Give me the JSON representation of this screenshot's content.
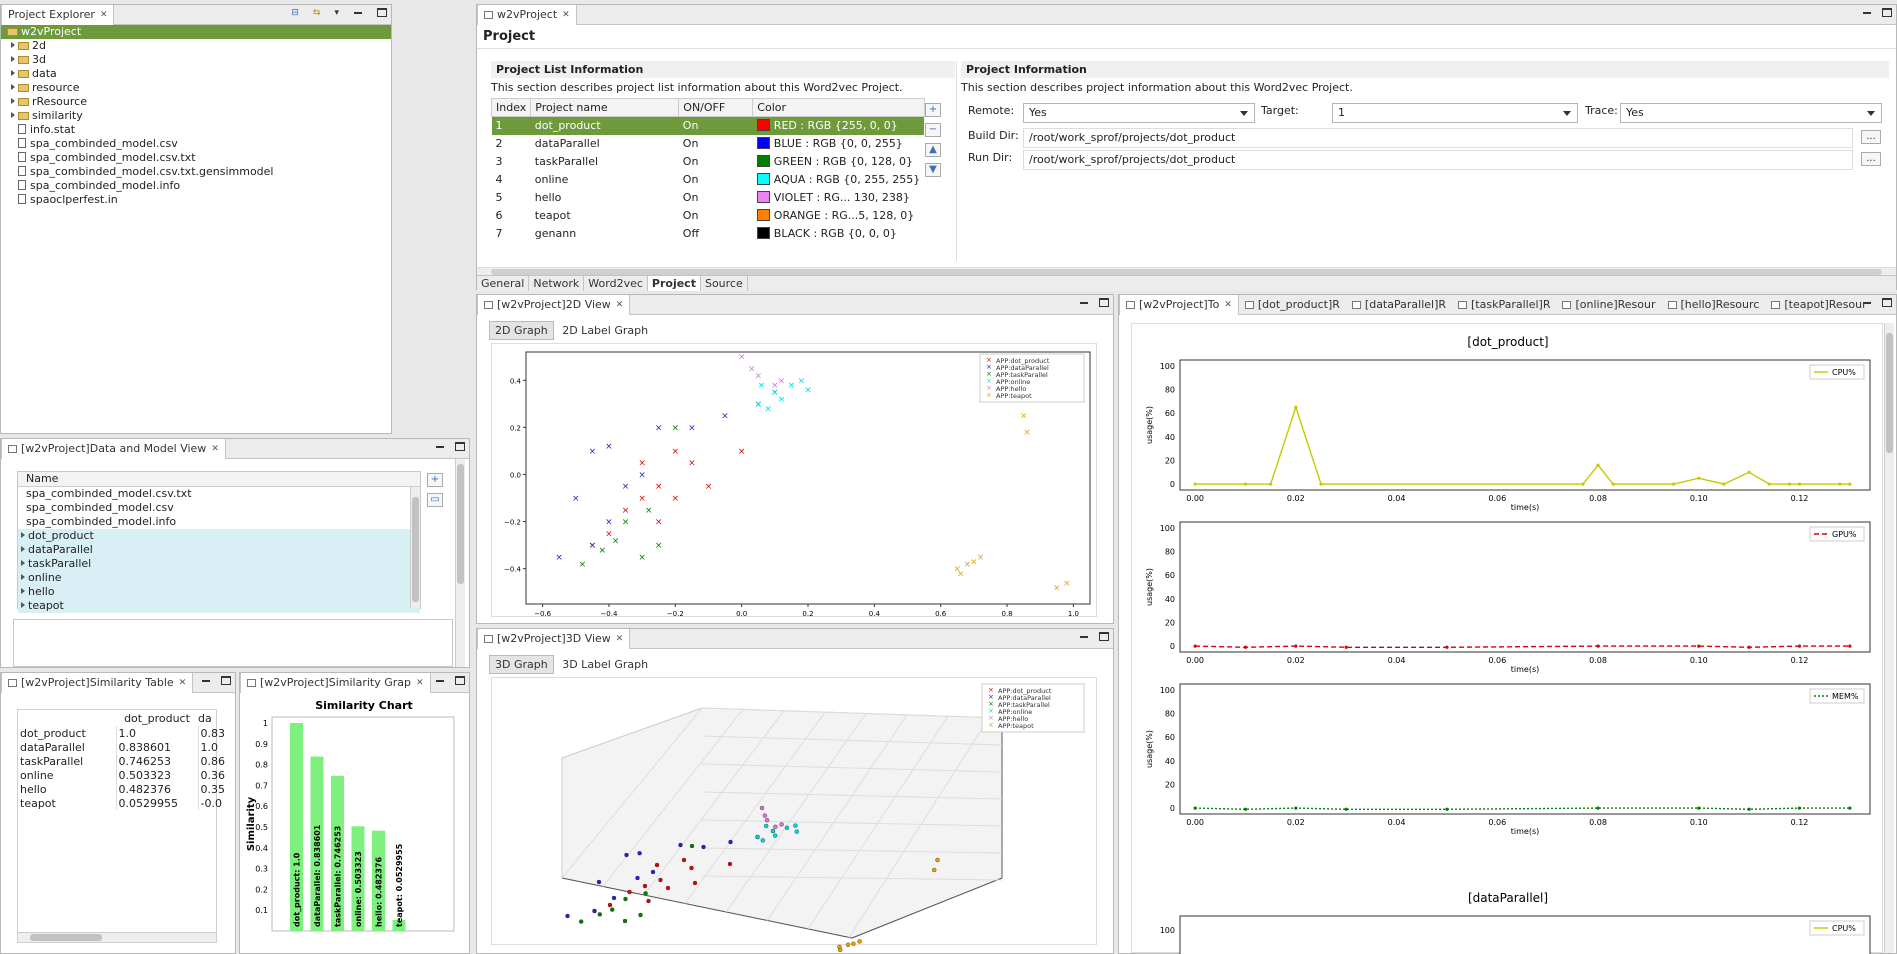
{
  "project_explorer": {
    "tab": "Project Explorer",
    "root": "w2vProject",
    "folders": [
      "2d",
      "3d",
      "data",
      "resource",
      "rResource",
      "similarity"
    ],
    "files": [
      "info.stat",
      "spa_combinded_model.csv",
      "spa_combinded_model.csv.txt",
      "spa_combinded_model.csv.txt.gensimmodel",
      "spa_combinded_model.info",
      "spaoclperfest.in"
    ]
  },
  "data_model_view": {
    "tab": "[w2vProject]Data and Model View",
    "column": "Name",
    "files": [
      "spa_combinded_model.csv.txt",
      "spa_combinded_model.csv",
      "spa_combinded_model.info"
    ],
    "groups": [
      "dot_product",
      "dataParallel",
      "taskParallel",
      "online",
      "hello",
      "teapot"
    ]
  },
  "similarity_table": {
    "tab": "[w2vProject]Similarity Table",
    "columns": [
      "dot_product",
      "da"
    ],
    "rows": [
      {
        "name": "dot_product",
        "v1": "1.0",
        "v2": "0.83"
      },
      {
        "name": "dataParallel",
        "v1": "0.838601",
        "v2": "1.0"
      },
      {
        "name": "taskParallel",
        "v1": "0.746253",
        "v2": "0.86"
      },
      {
        "name": "online",
        "v1": "0.503323",
        "v2": "0.36"
      },
      {
        "name": "hello",
        "v1": "0.482376",
        "v2": "0.35"
      },
      {
        "name": "teapot",
        "v1": "0.0529955",
        "v2": "-0.0"
      }
    ]
  },
  "similarity_graph": {
    "tab": "[w2vProject]Similarity Grap"
  },
  "editor": {
    "tab": "w2vProject",
    "title": "Project",
    "list_section": {
      "title": "Project List Information",
      "desc": "This section describes project list information about this Word2vec Project.",
      "headers": [
        "Index",
        "Project name",
        "ON/OFF",
        "Color"
      ],
      "rows": [
        {
          "idx": "1",
          "name": "dot_product",
          "state": "On",
          "color": "RED : RGB {255, 0, 0}",
          "hex": "#ff0000"
        },
        {
          "idx": "2",
          "name": "dataParallel",
          "state": "On",
          "color": "BLUE : RGB {0, 0, 255}",
          "hex": "#0000ff"
        },
        {
          "idx": "3",
          "name": "taskParallel",
          "state": "On",
          "color": "GREEN : RGB {0, 128, 0}",
          "hex": "#008000"
        },
        {
          "idx": "4",
          "name": "online",
          "state": "On",
          "color": "AQUA : RGB {0, 255, 255}",
          "hex": "#00ffff"
        },
        {
          "idx": "5",
          "name": "hello",
          "state": "On",
          "color": "VIOLET : RG... 130, 238}",
          "hex": "#ee82ee"
        },
        {
          "idx": "6",
          "name": "teapot",
          "state": "On",
          "color": "ORANGE : RG...5, 128, 0}",
          "hex": "#ff8000"
        },
        {
          "idx": "7",
          "name": "genann",
          "state": "Off",
          "color": "BLACK : RGB {0, 0, 0}",
          "hex": "#000000"
        }
      ]
    },
    "info_section": {
      "title": "Project Information",
      "desc": "This section describes project information about this Word2vec Project.",
      "remote_label": "Remote:",
      "remote": "Yes",
      "target_label": "Target:",
      "target": "1",
      "trace_label": "Trace:",
      "trace": "Yes",
      "build_label": "Build Dir:",
      "build": "/root/work_sprof/projects/dot_product",
      "run_label": "Run Dir:",
      "run": "/root/work_sprof/projects/dot_product",
      "browse": "..."
    },
    "bottom_tabs": [
      "General",
      "Network",
      "Word2vec",
      "Project",
      "Source"
    ]
  },
  "view2d": {
    "tab": "[w2vProject]2D View",
    "subtabs": [
      "2D Graph",
      "2D Label Graph"
    ]
  },
  "view3d": {
    "tab": "[w2vProject]3D View",
    "subtabs": [
      "3D Graph",
      "3D Label Graph"
    ]
  },
  "legend": [
    "APP:dot_product",
    "APP:dataParallel",
    "APP:taskParallel",
    "APP:online",
    "APP:hello",
    "APP:teapot"
  ],
  "resource_view": {
    "tabs": [
      "[w2vProject]To",
      "[dot_product]R",
      "[dataParallel]R",
      "[taskParallel]R",
      "[online]Resour",
      "[hello]Resourc",
      "[teapot]Resour"
    ],
    "section1": "[dot_product]",
    "section2": "[dataParallel]",
    "ylabel": "usage(%)",
    "xlabel": "time(s)",
    "series": [
      "CPU%",
      "GPU%",
      "MEM%"
    ]
  },
  "chart_data": [
    {
      "type": "scatter",
      "xlim": [
        -0.65,
        1.05
      ],
      "ylim": [
        -0.55,
        0.52
      ],
      "xticks": [
        -0.6,
        -0.4,
        -0.2,
        0.0,
        0.2,
        0.4,
        0.6,
        0.8,
        1.0
      ],
      "yticks": [
        -0.4,
        -0.2,
        0.0,
        0.2,
        0.4
      ],
      "xtick_labels": [
        "−0.6",
        "−0.4",
        "−0.2",
        "0.0",
        "0.2",
        "0.4",
        "0.6",
        "0.8",
        "1.0"
      ],
      "ytick_labels": [
        "−0.4",
        "−0.2",
        "0.0",
        "0.2",
        "0.4"
      ],
      "series": [
        {
          "name": "APP:dot_product",
          "color": "#e00000",
          "points": [
            [
              -0.2,
              0.1
            ],
            [
              -0.15,
              0.05
            ],
            [
              -0.25,
              -0.05
            ],
            [
              -0.3,
              -0.1
            ],
            [
              -0.35,
              -0.15
            ],
            [
              -0.2,
              -0.1
            ],
            [
              -0.25,
              -0.2
            ],
            [
              -0.4,
              -0.25
            ],
            [
              -0.1,
              -0.05
            ],
            [
              0.0,
              0.1
            ],
            [
              -0.45,
              -0.3
            ],
            [
              -0.3,
              0.05
            ]
          ]
        },
        {
          "name": "APP:dataParallel",
          "color": "#2020d0",
          "points": [
            [
              -0.55,
              -0.35
            ],
            [
              -0.45,
              -0.3
            ],
            [
              -0.4,
              -0.2
            ],
            [
              -0.5,
              -0.1
            ],
            [
              -0.35,
              -0.05
            ],
            [
              -0.3,
              0.0
            ],
            [
              -0.25,
              0.2
            ],
            [
              -0.15,
              0.2
            ],
            [
              -0.05,
              0.25
            ],
            [
              -0.45,
              0.1
            ],
            [
              -0.4,
              0.12
            ],
            [
              0.05,
              0.3
            ]
          ]
        },
        {
          "name": "APP:taskParallel",
          "color": "#008000",
          "points": [
            [
              -0.48,
              -0.38
            ],
            [
              -0.42,
              -0.32
            ],
            [
              -0.38,
              -0.28
            ],
            [
              -0.3,
              -0.35
            ],
            [
              -0.25,
              -0.3
            ],
            [
              -0.35,
              -0.2
            ],
            [
              -0.2,
              0.2
            ],
            [
              -0.28,
              -0.15
            ],
            [
              0.1,
              0.35
            ]
          ]
        },
        {
          "name": "APP:online",
          "color": "#00d8e8",
          "points": [
            [
              0.05,
              0.3
            ],
            [
              0.1,
              0.35
            ],
            [
              0.15,
              0.38
            ],
            [
              0.12,
              0.32
            ],
            [
              0.2,
              0.36
            ],
            [
              0.08,
              0.28
            ],
            [
              0.18,
              0.4
            ],
            [
              0.06,
              0.38
            ]
          ]
        },
        {
          "name": "APP:hello",
          "color": "#e070e0",
          "points": [
            [
              0.0,
              0.5
            ],
            [
              0.05,
              0.42
            ],
            [
              0.1,
              0.38
            ],
            [
              0.12,
              0.4
            ],
            [
              0.03,
              0.45
            ]
          ]
        },
        {
          "name": "APP:teapot",
          "color": "#f0a000",
          "points": [
            [
              0.65,
              -0.4
            ],
            [
              0.68,
              -0.38
            ],
            [
              0.7,
              -0.37
            ],
            [
              0.66,
              -0.42
            ],
            [
              0.72,
              -0.35
            ],
            [
              0.85,
              0.25
            ],
            [
              0.86,
              0.18
            ],
            [
              0.95,
              -0.48
            ],
            [
              0.98,
              -0.46
            ]
          ]
        }
      ]
    },
    {
      "type": "bar",
      "title": "Similarity Chart",
      "ylabel": "Similarity",
      "ylim": [
        0,
        1
      ],
      "yticks": [
        0.1,
        0.2,
        0.3,
        0.4,
        0.5,
        0.6,
        0.7,
        0.8,
        0.9,
        1
      ],
      "categories": [
        "dot_product",
        "dataParallel",
        "taskParallel",
        "online",
        "hello",
        "teapot"
      ],
      "values": [
        1.0,
        0.838601,
        0.746253,
        0.503323,
        0.482376,
        0.0529955
      ],
      "labels": [
        "dot_product: 1.0",
        "dataParallel: 0.838601",
        "taskParallel: 0.746253",
        "online: 0.503323",
        "hello: 0.482376",
        "teapot: 0.0529955"
      ]
    },
    {
      "type": "line",
      "title": "[dot_product]",
      "name": "CPU%",
      "color": "#c8c800",
      "dash": "",
      "xlim": [
        -0.003,
        0.134
      ],
      "ylim": [
        -5,
        105
      ],
      "xticks": [
        0.0,
        0.02,
        0.04,
        0.06,
        0.08,
        0.1,
        0.12
      ],
      "xtick_labels": [
        "0.00",
        "0.02",
        "0.04",
        "0.06",
        "0.08",
        "0.10",
        "0.12"
      ],
      "yticks": [
        0,
        20,
        40,
        60,
        80,
        100
      ],
      "x": [
        0.0,
        0.01,
        0.015,
        0.02,
        0.025,
        0.077,
        0.08,
        0.083,
        0.095,
        0.1,
        0.105,
        0.11,
        0.114,
        0.118,
        0.12,
        0.128,
        0.13
      ],
      "y": [
        0,
        0,
        0,
        65,
        0,
        0,
        16,
        0,
        0,
        5,
        0,
        10,
        0,
        0,
        0,
        0,
        0
      ]
    },
    {
      "type": "line",
      "name": "GPU%",
      "color": "#e00000",
      "dash": "5,3",
      "xlim": [
        -0.003,
        0.134
      ],
      "ylim": [
        -5,
        105
      ],
      "xticks": [
        0.0,
        0.02,
        0.04,
        0.06,
        0.08,
        0.1,
        0.12
      ],
      "xtick_labels": [
        "0.00",
        "0.02",
        "0.04",
        "0.06",
        "0.08",
        "0.10",
        "0.12"
      ],
      "yticks": [
        0,
        20,
        40,
        60,
        80,
        100
      ],
      "x": [
        0.0,
        0.01,
        0.02,
        0.03,
        0.05,
        0.08,
        0.1,
        0.11,
        0.12,
        0.13
      ],
      "y": [
        0,
        -1,
        0,
        -1,
        -1,
        0,
        0,
        -1,
        0,
        0
      ]
    },
    {
      "type": "line",
      "name": "MEM%",
      "color": "#008000",
      "dash": "2,2",
      "xlim": [
        -0.003,
        0.134
      ],
      "ylim": [
        -5,
        105
      ],
      "xticks": [
        0.0,
        0.02,
        0.04,
        0.06,
        0.08,
        0.1,
        0.12
      ],
      "xtick_labels": [
        "0.00",
        "0.02",
        "0.04",
        "0.06",
        "0.08",
        "0.10",
        "0.12"
      ],
      "yticks": [
        0,
        20,
        40,
        60,
        80,
        100
      ],
      "x": [
        0.0,
        0.01,
        0.02,
        0.03,
        0.05,
        0.08,
        0.1,
        0.11,
        0.12,
        0.13
      ],
      "y": [
        0,
        -1,
        0,
        -1,
        -1,
        0,
        0,
        -1,
        0,
        0
      ]
    },
    {
      "type": "line",
      "title": "[dataParallel]",
      "name": "CPU%",
      "color": "#c8c800",
      "yticks": [
        100
      ],
      "ylim": [
        -5,
        105
      ]
    }
  ]
}
